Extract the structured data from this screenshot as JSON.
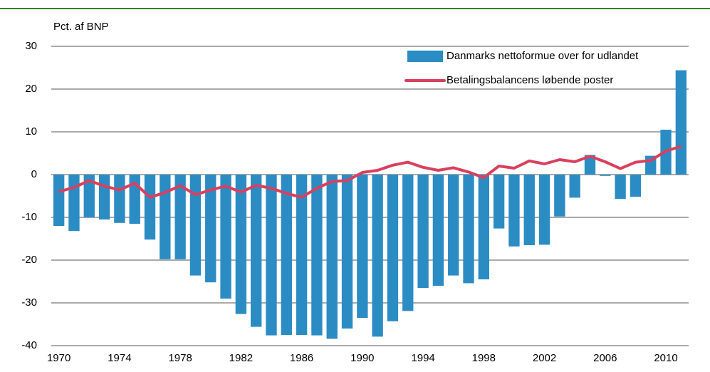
{
  "chart_data": {
    "type": "bar_line",
    "y_label": "Pct. af BNP",
    "x": [
      1970,
      1971,
      1972,
      1973,
      1974,
      1975,
      1976,
      1977,
      1978,
      1979,
      1980,
      1981,
      1982,
      1983,
      1984,
      1985,
      1986,
      1987,
      1988,
      1989,
      1990,
      1991,
      1992,
      1993,
      1994,
      1995,
      1996,
      1997,
      1998,
      1999,
      2000,
      2001,
      2002,
      2003,
      2004,
      2005,
      2006,
      2007,
      2008,
      2009,
      2010,
      2011
    ],
    "series": [
      {
        "name": "Danmarks nettoformue over for udlandet",
        "kind": "bar",
        "color": "#2b8cc4",
        "values": [
          -12,
          -13.2,
          -10,
          -10.5,
          -11.3,
          -11.5,
          -15.2,
          -19.8,
          -19.8,
          -23.6,
          -25.2,
          -29,
          -32.6,
          -35.6,
          -37.6,
          -37.5,
          -37.5,
          -37.6,
          -38.4,
          -36,
          -33.5,
          -37.9,
          -34.3,
          -31.9,
          -26.5,
          -26,
          -23.6,
          -25.4,
          -24.5,
          -12.6,
          -16.8,
          -16.5,
          -16.4,
          -9.8,
          -5.4,
          4.6,
          -0.3,
          -5.7,
          -5.2,
          4.4,
          10.5,
          24.4
        ]
      },
      {
        "name": "Betalingsbalancens løbende poster",
        "kind": "line",
        "color": "#d9405e",
        "values": [
          -4,
          -3,
          -1.4,
          -2.7,
          -3.6,
          -2,
          -5.3,
          -4.2,
          -2.6,
          -4.7,
          -3.6,
          -2.7,
          -4.1,
          -2.5,
          -3.2,
          -4.4,
          -5.3,
          -3.2,
          -1.6,
          -1.4,
          0.5,
          1,
          2.2,
          2.9,
          1.7,
          1,
          1.6,
          0.6,
          -0.7,
          2,
          1.5,
          3.2,
          2.5,
          3.5,
          3,
          4.3,
          3,
          1.4,
          2.9,
          3.3,
          5.5,
          6.6
        ]
      }
    ],
    "xlim": [
      1969.5,
      2011.5
    ],
    "xticks": [
      1970,
      1974,
      1978,
      1982,
      1986,
      1990,
      1994,
      1998,
      2002,
      2006,
      2010
    ],
    "ylim": [
      -40,
      30
    ],
    "yticks": [
      -40,
      -30,
      -20,
      -10,
      0,
      10,
      20,
      30
    ],
    "grid": true,
    "legend": "top-right"
  }
}
